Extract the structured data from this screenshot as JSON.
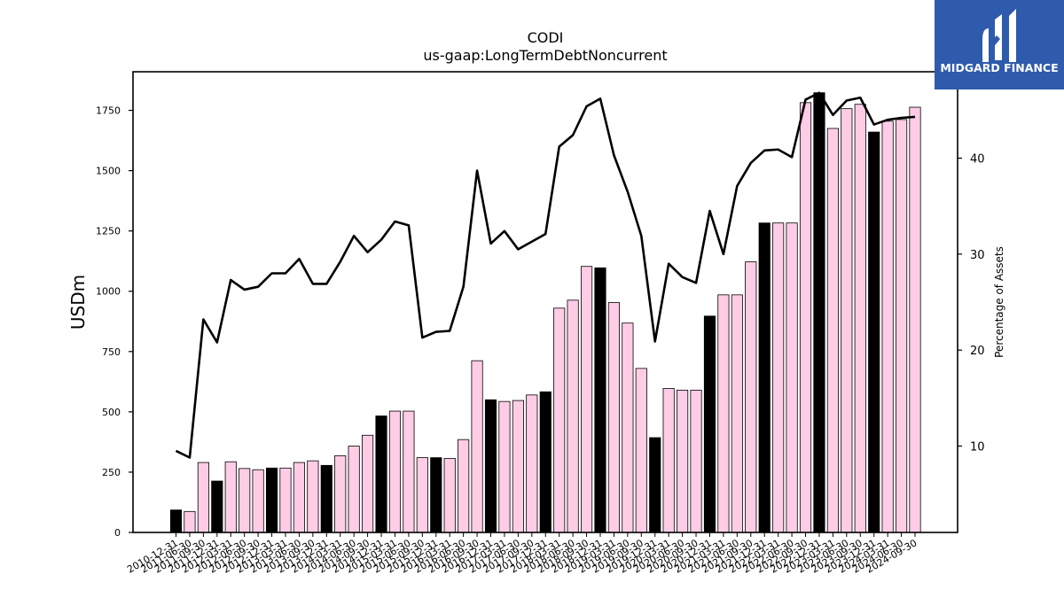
{
  "chart_data": {
    "type": "bar",
    "title": "CODI",
    "subtitle": "us-gaap:LongTermDebtNoncurrent",
    "ylabel": "USDm",
    "y2label": "Percentage of Assets",
    "ylim": [
      0,
      1910
    ],
    "y2lim": [
      1,
      49
    ],
    "yticks": [
      0,
      250,
      500,
      750,
      1000,
      1250,
      1500,
      1750
    ],
    "y2ticks": [
      10,
      20,
      30,
      40
    ],
    "categories": [
      "2010-12-31",
      "2011-06-30",
      "2011-09-30",
      "2011-12-31",
      "2012-03-31",
      "2012-06-30",
      "2012-09-30",
      "2012-12-31",
      "2013-03-31",
      "2013-06-30",
      "2013-09-30",
      "2013-12-31",
      "2014-03-31",
      "2014-06-30",
      "2014-09-30",
      "2014-12-31",
      "2015-03-31",
      "2015-06-30",
      "2015-09-30",
      "2015-12-31",
      "2016-03-31",
      "2016-06-30",
      "2016-09-30",
      "2016-12-31",
      "2017-03-31",
      "2017-06-30",
      "2017-09-30",
      "2017-12-31",
      "2018-03-31",
      "2018-06-30",
      "2018-09-30",
      "2018-12-31",
      "2019-03-31",
      "2019-06-30",
      "2019-09-30",
      "2019-12-31",
      "2020-03-31",
      "2020-06-30",
      "2020-09-30",
      "2020-12-31",
      "2021-03-31",
      "2021-06-30",
      "2021-09-30",
      "2021-12-31",
      "2022-03-31",
      "2022-06-30",
      "2022-09-30",
      "2022-12-31",
      "2023-03-31",
      "2023-06-30",
      "2023-09-30",
      "2023-12-31",
      "2024-03-31",
      "2024-06-30",
      "2024-09-30"
    ],
    "series": [
      {
        "type": "bar",
        "values": [
          93,
          87,
          290,
          213,
          293,
          265,
          260,
          267,
          267,
          290,
          297,
          278,
          318,
          358,
          403,
          483,
          503,
          503,
          310,
          310,
          307,
          385,
          712,
          550,
          543,
          547,
          570,
          583,
          930,
          963,
          1103,
          1097,
          953,
          868,
          680,
          393,
          597,
          590,
          590,
          897,
          985,
          985,
          1122,
          1283,
          1283,
          1283,
          1782,
          1823,
          1675,
          1757,
          1775,
          1660,
          1705,
          1712,
          1763
        ]
      },
      {
        "type": "line",
        "axis": "right",
        "values": [
          9.5,
          8.8,
          23.2,
          20.8,
          27.3,
          26.3,
          26.6,
          28.0,
          28.0,
          29.5,
          26.9,
          26.9,
          29.2,
          31.9,
          30.2,
          31.5,
          33.4,
          33.0,
          21.3,
          21.9,
          22.0,
          26.6,
          38.7,
          31.1,
          32.4,
          30.5,
          31.3,
          32.1,
          41.2,
          42.4,
          45.4,
          46.2,
          40.3,
          36.5,
          31.9,
          20.9,
          29.0,
          27.6,
          27.0,
          34.5,
          30.0,
          37.1,
          39.5,
          40.8,
          40.9,
          40.1,
          46.1,
          46.8,
          44.5,
          46.0,
          46.3,
          43.5,
          44.0,
          44.2,
          44.3
        ]
      }
    ],
    "colors": {
      "bar_fill": "#ffcce6",
      "bar_highlight": "#000000",
      "bar_edge": "#000000",
      "line": "#000000"
    },
    "highlight_period": "12-31",
    "grid": false,
    "legend": "none"
  },
  "brand": {
    "name": "MIDGARD FINANCE",
    "bg_color": "#2e5bab",
    "icon": "midgard-logo-icon"
  }
}
